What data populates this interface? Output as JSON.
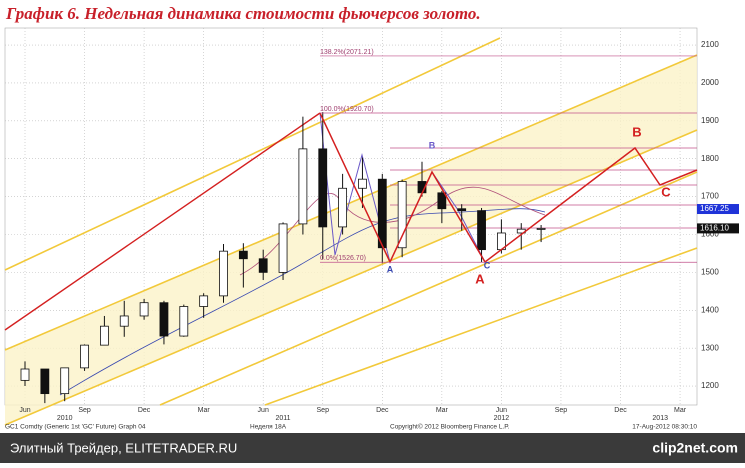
{
  "header": {
    "title": "График 6.   Недельная динамика стоимости фьючерсов золото."
  },
  "chart_data": {
    "type": "candlestick",
    "categories": [
      "Jun",
      null,
      null,
      "Sep",
      null,
      null,
      "Dec",
      null,
      null,
      "Mar",
      null,
      null,
      "Jun",
      null,
      null,
      "Sep",
      null,
      null,
      "Dec",
      null,
      null,
      "Mar",
      null,
      null,
      "Jun",
      null,
      null,
      "Sep",
      null,
      null,
      "Dec",
      null,
      null,
      "Mar"
    ],
    "year_labels": [
      null,
      null,
      "2010",
      null,
      null,
      null,
      null,
      null,
      null,
      null,
      null,
      null,
      null,
      "2011",
      null,
      null,
      null,
      null,
      null,
      null,
      null,
      null,
      null,
      null,
      "2012",
      null,
      null,
      null,
      null,
      null,
      null,
      null,
      "2013",
      null
    ],
    "open": [
      1215,
      1245,
      1180,
      1248,
      1308,
      1358,
      1385,
      1420,
      1332,
      1410,
      1438,
      1556,
      1536,
      1500,
      1628,
      1826,
      1620,
      1722,
      1746,
      1565,
      1740,
      1710,
      1668,
      1663,
      1560,
      1604,
      1614,
      null,
      null,
      null,
      null,
      null,
      null,
      null
    ],
    "high": [
      1265,
      1245,
      1240,
      1310,
      1385,
      1425,
      1430,
      1425,
      1415,
      1445,
      1575,
      1577,
      1560,
      1632,
      1911,
      1923,
      1760,
      1803,
      1760,
      1745,
      1792,
      1715,
      1680,
      1670,
      1640,
      1630,
      1625,
      null,
      null,
      null,
      null,
      null,
      null,
      null
    ],
    "low": [
      1200,
      1155,
      1160,
      1240,
      1310,
      1330,
      1375,
      1310,
      1330,
      1380,
      1420,
      1460,
      1480,
      1480,
      1600,
      1535,
      1600,
      1670,
      1524,
      1540,
      1700,
      1630,
      1610,
      1527,
      1550,
      1560,
      1580,
      null,
      null,
      null,
      null,
      null,
      null,
      null
    ],
    "close": [
      1245,
      1180,
      1248,
      1308,
      1358,
      1385,
      1420,
      1332,
      1410,
      1438,
      1556,
      1536,
      1500,
      1628,
      1826,
      1620,
      1722,
      1746,
      1565,
      1740,
      1710,
      1668,
      1663,
      1560,
      1604,
      1614,
      1616,
      null,
      null,
      null,
      null,
      null,
      null,
      null
    ],
    "ylim": [
      1150,
      2145
    ],
    "yticks": [
      1200,
      1300,
      1400,
      1500,
      1600,
      1700,
      1800,
      1900,
      2000,
      2100
    ],
    "grid": true,
    "fib_levels": [
      {
        "value": 2071.21,
        "label": "138.2%(2071.21)"
      },
      {
        "value": 1920.7,
        "label": "100.0%(1920.70)"
      },
      {
        "value": 1526.7,
        "label": "0.0%(1526.70)"
      }
    ],
    "price_tags": [
      {
        "value": 1667.25,
        "label": "1667.25",
        "color": "#1f33d8"
      },
      {
        "value": 1616.1,
        "label": "1616.10",
        "color": "#111111"
      }
    ],
    "wave_labels": [
      "A",
      "B",
      "C",
      "A",
      "B",
      "C"
    ],
    "footnotes": [
      "GC1 Comdty (Generic 1st 'GC' Future) Graph 04",
      "Неделя 18А",
      "Copyright© 2012 Bloomberg Finance L.P.",
      "17-Aug-2012 08:30:10"
    ]
  },
  "footer": {
    "source": "Элитный Трейдер, ELITETRADER.RU",
    "logo": "clip2net.com"
  }
}
